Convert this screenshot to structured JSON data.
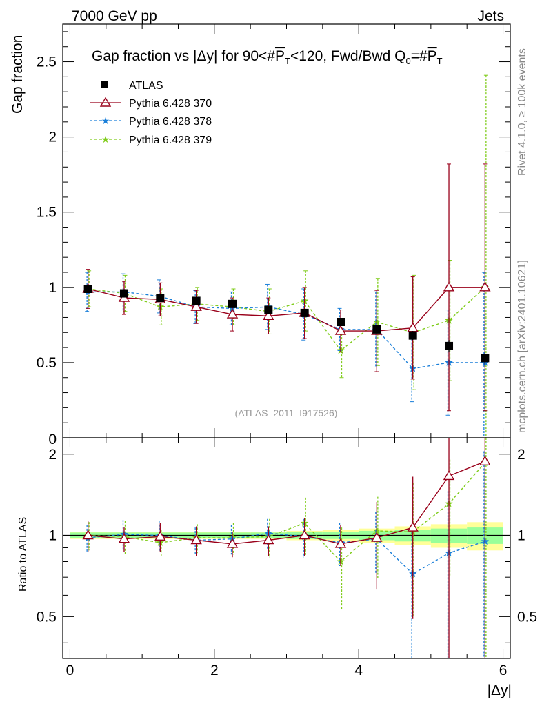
{
  "header": {
    "left": "7000 GeV pp",
    "right": "Jets"
  },
  "side_labels": {
    "rivet": "Rivet 4.1.0, ≥ 100k events",
    "mcplots": "mcplots.cern.ch [arXiv:2401.10621]"
  },
  "colors": {
    "atlas": "#000000",
    "p370": "#99001a",
    "p378": "#1a7fd9",
    "p379": "#7fcc1a",
    "band_inner": "#99ff99",
    "band_outer": "#ffff99"
  },
  "chart_data": {
    "type": "scatter",
    "title": "Gap fraction vs |Δy| for 90<#P_T<120, Fwd/Bwd Q_0=#P_T",
    "title_parts": {
      "a": "Gap fraction vs |Δy| for 90<#",
      "p": "P",
      "t": "T",
      "b": "<120, Fwd/Bwd Q",
      "zero": "0",
      "c": "=#"
    },
    "xlabel": "|Δy|",
    "ylabel": "Gap fraction",
    "ratio_ylabel": "Ratio to ATLAS",
    "watermark": "(ATLAS_2011_I917526)",
    "xlim": [
      -0.1,
      6.1
    ],
    "ylim": [
      0,
      2.75
    ],
    "ratio_ylim": [
      0.35,
      2.3
    ],
    "xticks": [
      0,
      2,
      4,
      6
    ],
    "yticks": [
      0.5,
      1,
      1.5,
      2,
      2.5
    ],
    "ytick_labels": [
      "0.5",
      "1",
      "1.5",
      "2",
      "2.5"
    ],
    "ytick_zero": "0",
    "ratio_yticks": [
      0.5,
      1,
      2
    ],
    "x": [
      0.25,
      0.75,
      1.25,
      1.75,
      2.25,
      2.75,
      3.25,
      3.75,
      4.25,
      4.75,
      5.25,
      5.75
    ],
    "band_inner": [
      0.025,
      0.025,
      0.025,
      0.025,
      0.025,
      0.025,
      0.03,
      0.03,
      0.04,
      0.05,
      0.06,
      0.07
    ],
    "band_outer": [
      0.03,
      0.03,
      0.03,
      0.03,
      0.03,
      0.03,
      0.04,
      0.05,
      0.06,
      0.08,
      0.1,
      0.12
    ],
    "series": [
      {
        "name": "ATLAS",
        "style": "data",
        "values": [
          0.99,
          0.96,
          0.93,
          0.91,
          0.89,
          0.85,
          0.83,
          0.77,
          0.72,
          0.68,
          0.61,
          0.53
        ],
        "err": [
          0.02,
          0.02,
          0.02,
          0.02,
          0.02,
          0.02,
          0.02,
          0.02,
          0.03,
          0.03,
          0.04,
          0.05
        ],
        "ratio": [
          1,
          1,
          1,
          1,
          1,
          1,
          1,
          1,
          1,
          1,
          1,
          1
        ],
        "ratio_err": [
          0,
          0,
          0,
          0,
          0,
          0,
          0,
          0,
          0,
          0,
          0,
          0
        ]
      },
      {
        "name": "Pythia 6.428 370",
        "style": "triangle",
        "values": [
          0.99,
          0.93,
          0.92,
          0.87,
          0.82,
          0.81,
          0.83,
          0.71,
          0.71,
          0.73,
          1.0,
          1.0
        ],
        "err": [
          0.13,
          0.11,
          0.11,
          0.11,
          0.11,
          0.12,
          0.17,
          0.14,
          0.27,
          0.34,
          0.82,
          0.82
        ],
        "ratio": [
          1.0,
          0.97,
          0.99,
          0.96,
          0.93,
          0.96,
          1.0,
          0.93,
          0.98,
          1.07,
          1.66,
          1.88
        ],
        "ratio_err": [
          0.13,
          0.1,
          0.12,
          0.12,
          0.1,
          0.12,
          0.16,
          0.16,
          0.35,
          0.58,
          1.4,
          1.6
        ]
      },
      {
        "name": "Pythia 6.428 378",
        "style": "star",
        "values": [
          0.97,
          0.97,
          0.94,
          0.87,
          0.86,
          0.87,
          0.82,
          0.72,
          0.72,
          0.46,
          0.5,
          0.5
        ],
        "err": [
          0.13,
          0.12,
          0.11,
          0.11,
          0.11,
          0.15,
          0.17,
          0.14,
          0.25,
          0.22,
          0.35,
          0.6
        ],
        "ratio": [
          0.98,
          1.01,
          1.0,
          0.96,
          0.97,
          1.02,
          0.99,
          0.94,
          0.97,
          0.72,
          0.86,
          0.95
        ],
        "ratio_err": [
          0.11,
          0.13,
          0.13,
          0.11,
          0.12,
          0.13,
          0.16,
          0.17,
          0.25,
          0.37,
          0.6,
          1.1
        ]
      },
      {
        "name": "Pythia 6.428 379",
        "style": "star",
        "values": [
          0.99,
          0.96,
          0.87,
          0.89,
          0.87,
          0.84,
          0.91,
          0.58,
          0.77,
          0.7,
          0.78,
          1.0
        ],
        "err": [
          0.12,
          0.12,
          0.12,
          0.11,
          0.12,
          0.15,
          0.2,
          0.18,
          0.29,
          0.38,
          0.4,
          1.41
        ],
        "ratio": [
          1.0,
          0.99,
          0.94,
          0.98,
          0.98,
          0.99,
          1.11,
          0.8,
          1.04,
          1.03,
          1.31,
          1.86
        ],
        "ratio_err": [
          0.12,
          0.14,
          0.11,
          0.12,
          0.13,
          0.16,
          0.27,
          0.27,
          0.35,
          0.53,
          0.6,
          1.7
        ]
      }
    ]
  }
}
